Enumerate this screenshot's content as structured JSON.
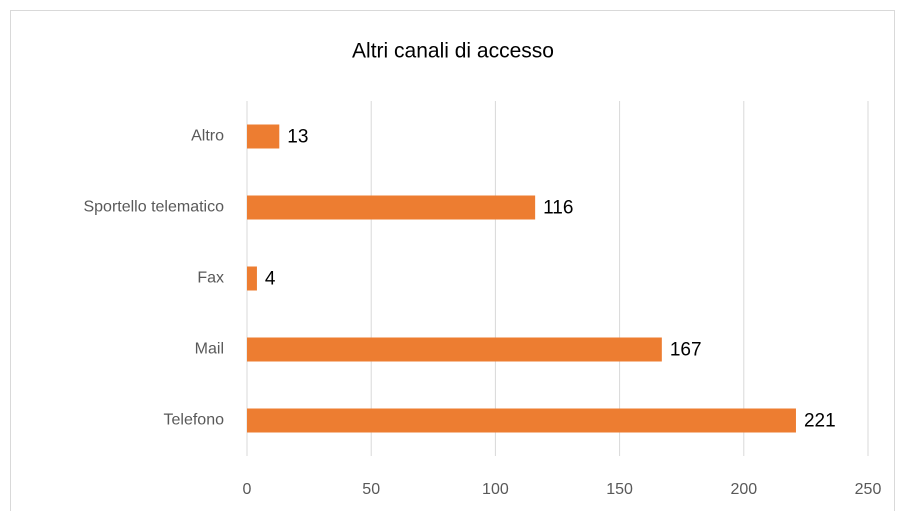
{
  "chart_data": {
    "type": "bar",
    "orientation": "horizontal",
    "title": "Altri canali di accesso",
    "categories": [
      "Altro",
      "Sportello telematico",
      "Fax",
      "Mail",
      "Telefono"
    ],
    "values": [
      13,
      116,
      4,
      167,
      221
    ],
    "color": "#ed7d31",
    "xlim": [
      0,
      250
    ],
    "xticks": [
      0,
      50,
      100,
      150,
      200,
      250
    ],
    "grid": true
  }
}
